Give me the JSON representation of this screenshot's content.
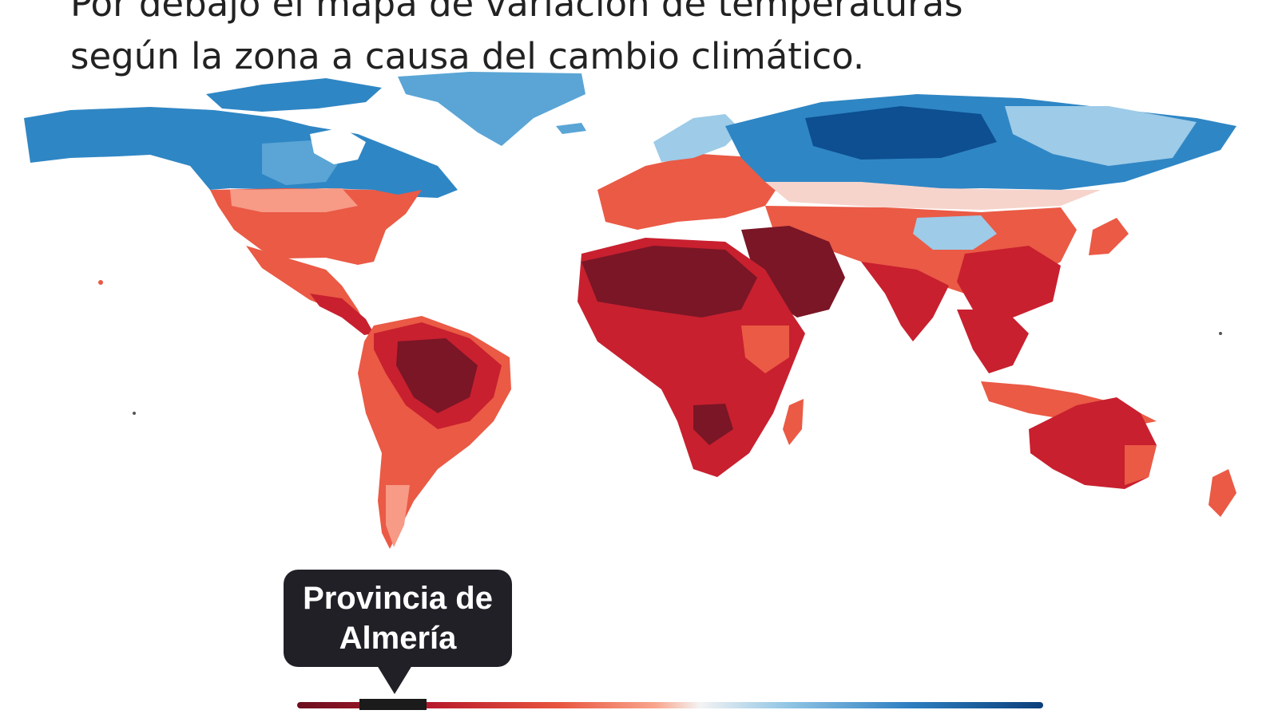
{
  "caption": {
    "line1": "Por debajo el mapa de variación de temperaturas",
    "line2": "según la zona a causa del cambio climático."
  },
  "tooltip": {
    "line1": "Provincia de",
    "line2": "Almería"
  },
  "colors": {
    "dark_red": "#7a1626",
    "red": "#c8202f",
    "orange_red": "#ea5a45",
    "light_red": "#f79a86",
    "pale": "#f6d4cc",
    "light_blue": "#9dcbe8",
    "blue": "#2f86c4",
    "dark_blue": "#0d4f91",
    "tooltip_bg": "#222027"
  }
}
